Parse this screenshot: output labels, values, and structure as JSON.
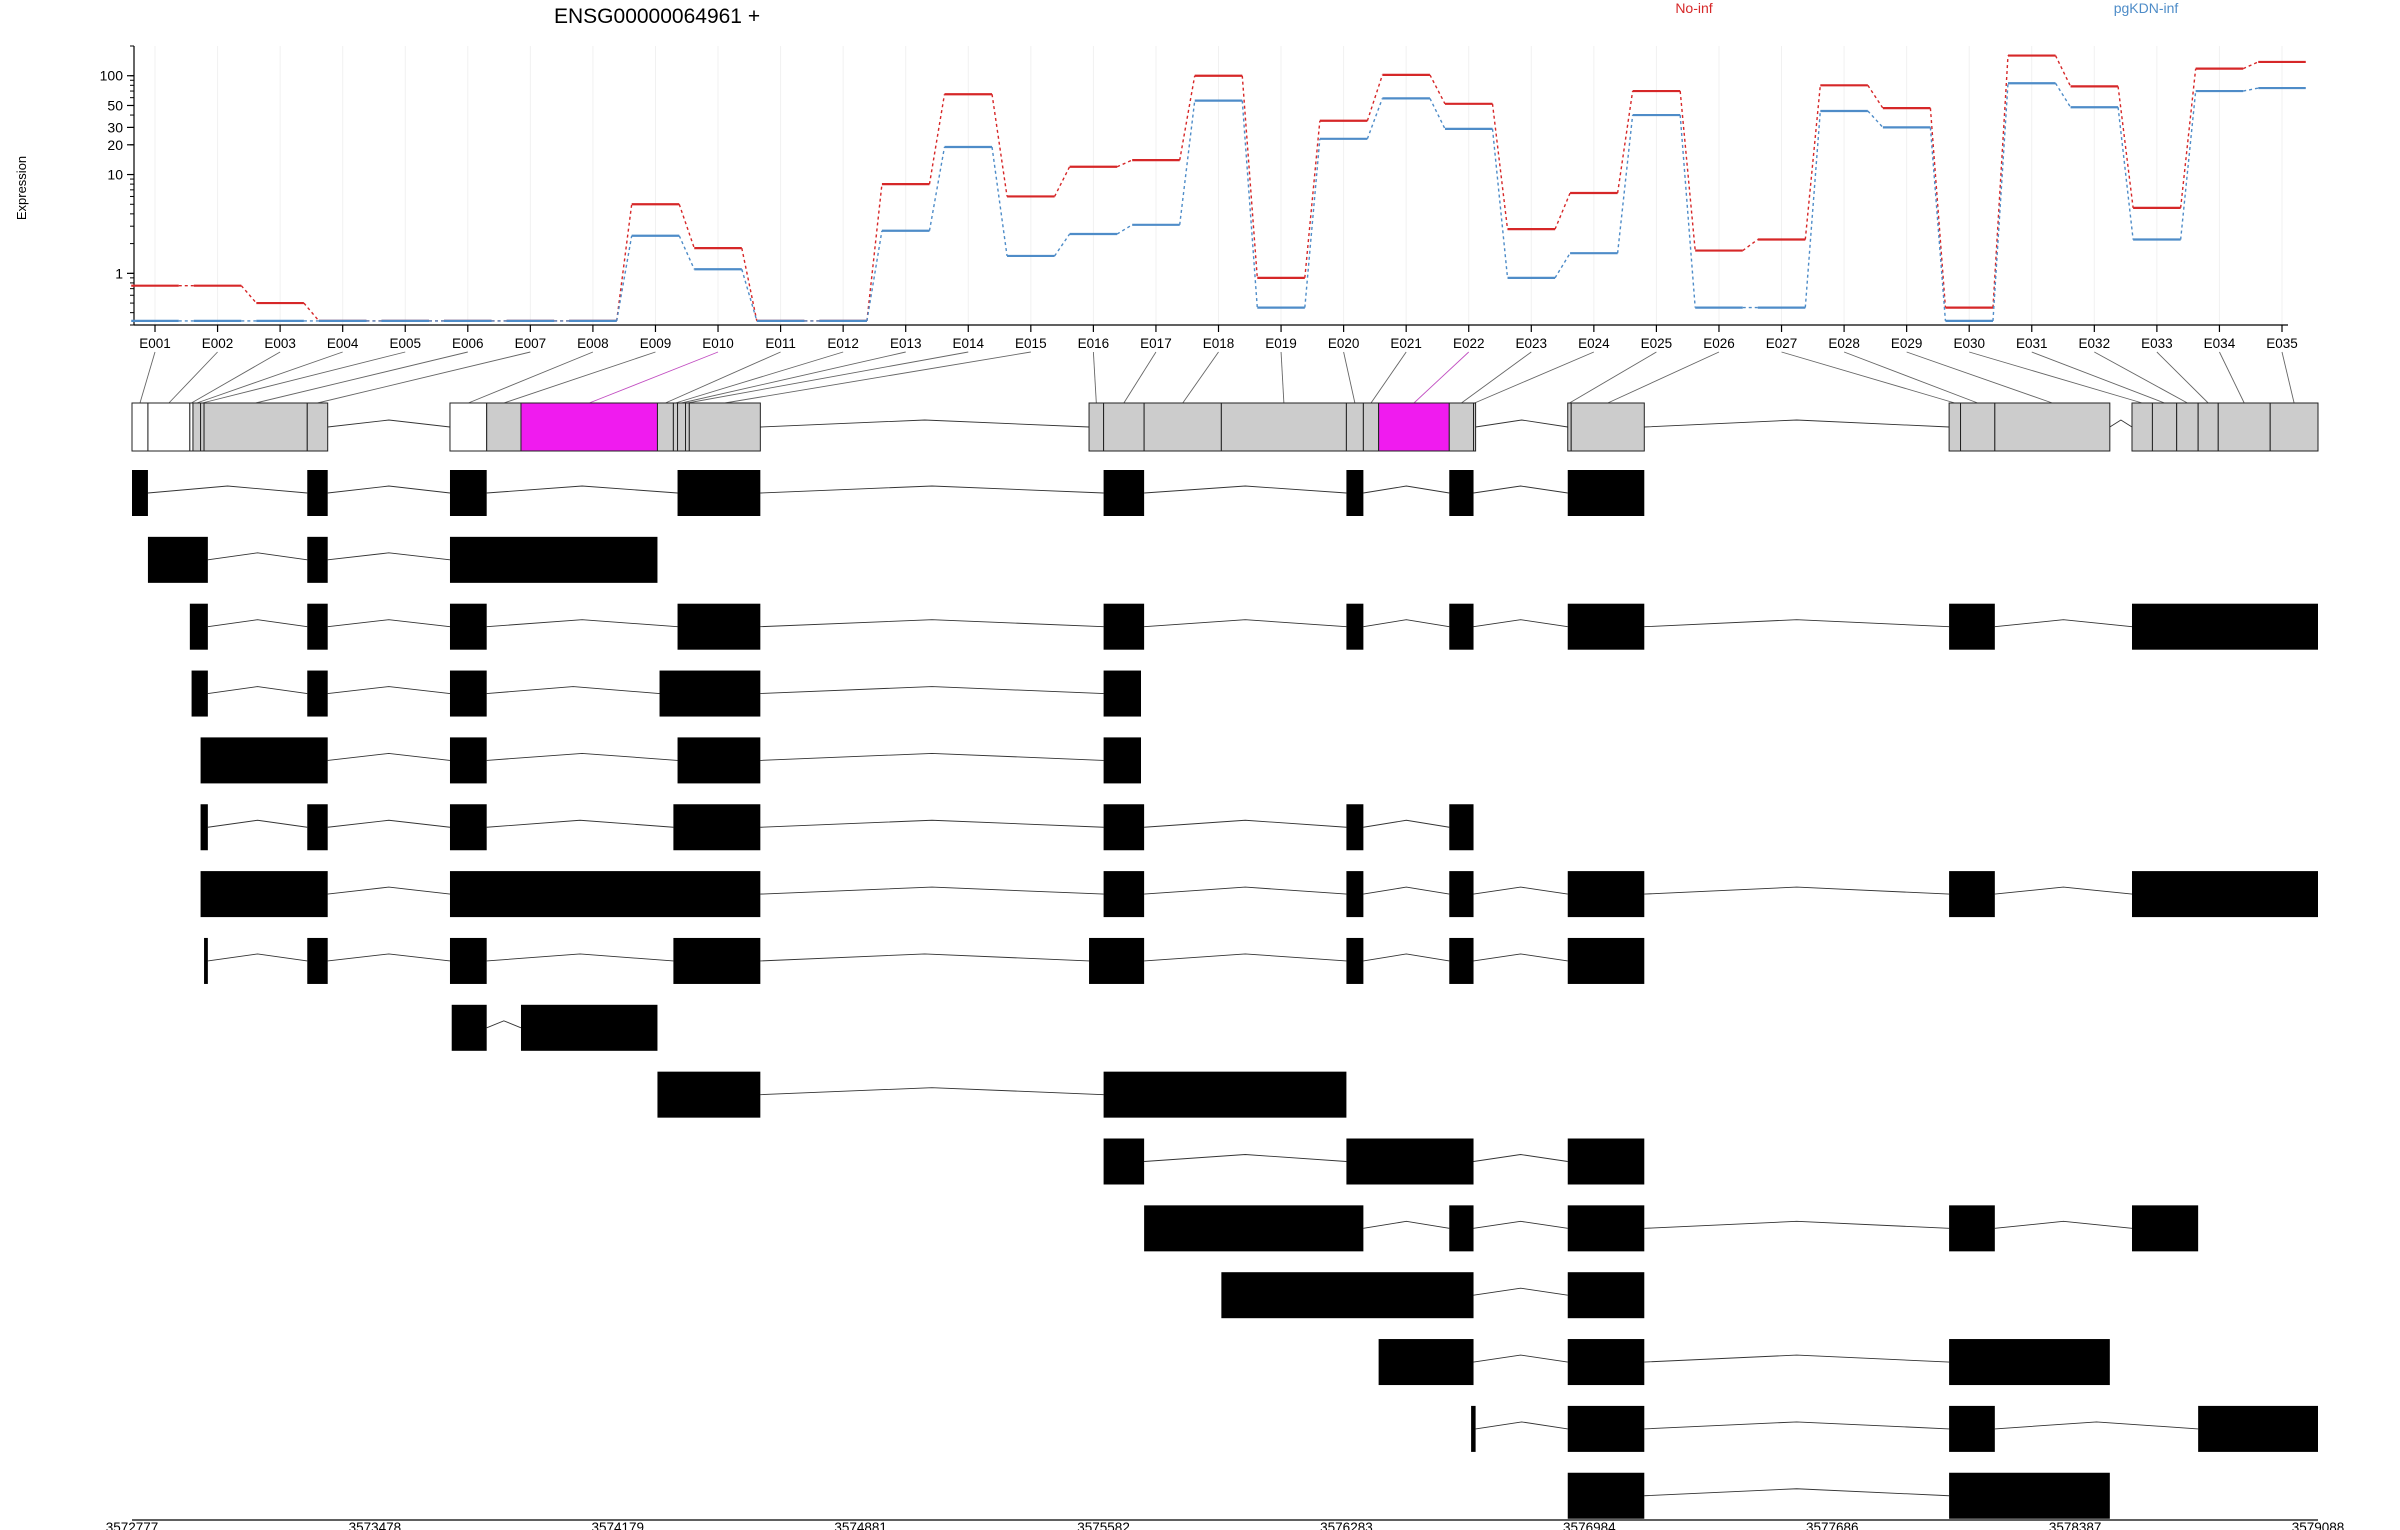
{
  "chart_data": {
    "type": "line",
    "title": "ENSG00000064961 +",
    "ylabel": "Expression",
    "yscale": "log",
    "ylim": [
      0.3,
      200
    ],
    "yticks": [
      1,
      10,
      20,
      30,
      50,
      100
    ],
    "grid": true,
    "legend": "top-right",
    "categories": [
      "E001",
      "E002",
      "E003",
      "E004",
      "E005",
      "E006",
      "E007",
      "E008",
      "E009",
      "E010",
      "E011",
      "E012",
      "E013",
      "E014",
      "E015",
      "E016",
      "E017",
      "E018",
      "E019",
      "E020",
      "E021",
      "E022",
      "E023",
      "E024",
      "E025",
      "E026",
      "E027",
      "E028",
      "E029",
      "E030",
      "E031",
      "E032",
      "E033",
      "E034",
      "E035"
    ],
    "series": [
      {
        "name": "No-inf",
        "color": "#d62728",
        "values": [
          0.75,
          0.75,
          0.5,
          0.33,
          0.33,
          0.33,
          0.33,
          0.33,
          5,
          1.8,
          0.33,
          0.33,
          8,
          65,
          6,
          12,
          14,
          100,
          0.9,
          35,
          102,
          52,
          2.8,
          6.5,
          70,
          1.7,
          2.2,
          80,
          47,
          0.45,
          160,
          78,
          4.6,
          118,
          138
        ]
      },
      {
        "name": "pgKDN-inf",
        "color": "#4e8cc8",
        "values": [
          0.33,
          0.33,
          0.33,
          0.33,
          0.33,
          0.33,
          0.33,
          0.33,
          2.4,
          1.1,
          0.33,
          0.33,
          2.7,
          19,
          1.5,
          2.5,
          3.1,
          56,
          0.45,
          23,
          59,
          29,
          0.9,
          1.6,
          40,
          0.45,
          0.45,
          44,
          30,
          0.33,
          84,
          48,
          2.2,
          70,
          75
        ]
      }
    ],
    "genomic_axis": {
      "min": 3572777,
      "max": 3579088,
      "tick_labels": [
        "3572777",
        "3573478",
        "3574179",
        "3574881",
        "3575582",
        "3576283",
        "3576984",
        "3577686",
        "3578387",
        "3579088"
      ]
    },
    "gene_model": {
      "exons": [
        {
          "id": "E001",
          "start": 3572777,
          "end": 3572823,
          "fill": "#ffffff"
        },
        {
          "id": "E002",
          "start": 3572823,
          "end": 3572944,
          "fill": "#ffffff"
        },
        {
          "id": "E003",
          "start": 3572944,
          "end": 3572953,
          "fill": "#ffffff"
        },
        {
          "id": "E004",
          "start": 3572953,
          "end": 3572975,
          "fill": "#cccccc"
        },
        {
          "id": "E005",
          "start": 3572975,
          "end": 3572985,
          "fill": "#cccccc"
        },
        {
          "id": "E006",
          "start": 3572985,
          "end": 3573283,
          "fill": "#cccccc"
        },
        {
          "id": "E007",
          "start": 3573283,
          "end": 3573342,
          "fill": "#cccccc"
        },
        {
          "id": "E008",
          "start": 3573695,
          "end": 3573801,
          "fill": "#ffffff"
        },
        {
          "id": "E009",
          "start": 3573801,
          "end": 3573900,
          "fill": "#cccccc"
        },
        {
          "id": "E010",
          "start": 3573900,
          "end": 3574294,
          "fill": "#f01bef"
        },
        {
          "id": "E011",
          "start": 3574294,
          "end": 3574340,
          "fill": "#cccccc"
        },
        {
          "id": "E012",
          "start": 3574340,
          "end": 3574352,
          "fill": "#cccccc"
        },
        {
          "id": "E013",
          "start": 3574352,
          "end": 3574375,
          "fill": "#cccccc"
        },
        {
          "id": "E014",
          "start": 3574375,
          "end": 3574386,
          "fill": "#cccccc"
        },
        {
          "id": "E015",
          "start": 3574386,
          "end": 3574591,
          "fill": "#cccccc"
        },
        {
          "id": "E016",
          "start": 3575540,
          "end": 3575582,
          "fill": "#cccccc"
        },
        {
          "id": "E017",
          "start": 3575582,
          "end": 3575699,
          "fill": "#cccccc"
        },
        {
          "id": "E018",
          "start": 3575699,
          "end": 3575922,
          "fill": "#cccccc"
        },
        {
          "id": "E019",
          "start": 3575922,
          "end": 3576283,
          "fill": "#cccccc"
        },
        {
          "id": "E020",
          "start": 3576283,
          "end": 3576332,
          "fill": "#cccccc"
        },
        {
          "id": "E021",
          "start": 3576332,
          "end": 3576376,
          "fill": "#cccccc"
        },
        {
          "id": "E022",
          "start": 3576376,
          "end": 3576580,
          "fill": "#f01bef"
        },
        {
          "id": "E023",
          "start": 3576580,
          "end": 3576650,
          "fill": "#cccccc"
        },
        {
          "id": "E024",
          "start": 3576650,
          "end": 3576656,
          "fill": "#cccccc"
        },
        {
          "id": "E025",
          "start": 3576922,
          "end": 3576932,
          "fill": "#cccccc"
        },
        {
          "id": "E026",
          "start": 3576932,
          "end": 3577143,
          "fill": "#cccccc"
        },
        {
          "id": "E027",
          "start": 3578023,
          "end": 3578056,
          "fill": "#cccccc"
        },
        {
          "id": "E028",
          "start": 3578056,
          "end": 3578155,
          "fill": "#cccccc"
        },
        {
          "id": "E029",
          "start": 3578155,
          "end": 3578487,
          "fill": "#cccccc"
        },
        {
          "id": "E030",
          "start": 3578551,
          "end": 3578610,
          "fill": "#cccccc"
        },
        {
          "id": "E031",
          "start": 3578610,
          "end": 3578680,
          "fill": "#cccccc"
        },
        {
          "id": "E032",
          "start": 3578680,
          "end": 3578742,
          "fill": "#cccccc"
        },
        {
          "id": "E033",
          "start": 3578742,
          "end": 3578800,
          "fill": "#cccccc"
        },
        {
          "id": "E034",
          "start": 3578800,
          "end": 3578950,
          "fill": "#cccccc"
        },
        {
          "id": "E035",
          "start": 3578950,
          "end": 3579088,
          "fill": "#cccccc"
        }
      ]
    },
    "transcripts": [
      [
        [
          3572777,
          3572823
        ],
        [
          3573283,
          3573342
        ],
        [
          3573695,
          3573801
        ],
        [
          3574352,
          3574591
        ],
        [
          3575582,
          3575699
        ],
        [
          3576283,
          3576332
        ],
        [
          3576580,
          3576650
        ],
        [
          3576922,
          3577143
        ]
      ],
      [
        [
          3572823,
          3572996
        ],
        [
          3573283,
          3573342
        ],
        [
          3573695,
          3574294
        ]
      ],
      [
        [
          3572944,
          3572996
        ],
        [
          3573283,
          3573342
        ],
        [
          3573695,
          3573801
        ],
        [
          3574352,
          3574591
        ],
        [
          3575582,
          3575699
        ],
        [
          3576283,
          3576332
        ],
        [
          3576580,
          3576650
        ],
        [
          3576922,
          3577143
        ],
        [
          3578023,
          3578155
        ],
        [
          3578551,
          3579088
        ]
      ],
      [
        [
          3572949,
          3572996
        ],
        [
          3573283,
          3573342
        ],
        [
          3573695,
          3573801
        ],
        [
          3574300,
          3574591
        ],
        [
          3575582,
          3575690
        ]
      ],
      [
        [
          3572975,
          3573342
        ],
        [
          3573695,
          3573801
        ],
        [
          3574352,
          3574591
        ],
        [
          3575582,
          3575690
        ]
      ],
      [
        [
          3572975,
          3572996
        ],
        [
          3573283,
          3573342
        ],
        [
          3573695,
          3573801
        ],
        [
          3574340,
          3574591
        ],
        [
          3575582,
          3575699
        ],
        [
          3576283,
          3576332
        ],
        [
          3576580,
          3576650
        ]
      ],
      [
        [
          3572975,
          3573342
        ],
        [
          3573695,
          3574591
        ],
        [
          3575582,
          3575699
        ],
        [
          3576283,
          3576332
        ],
        [
          3576580,
          3576650
        ],
        [
          3576922,
          3577143
        ],
        [
          3578023,
          3578155
        ],
        [
          3578551,
          3579088
        ]
      ],
      [
        [
          3572985,
          3572996
        ],
        [
          3573283,
          3573342
        ],
        [
          3573695,
          3573801
        ],
        [
          3574340,
          3574591
        ],
        [
          3575540,
          3575699
        ],
        [
          3576283,
          3576332
        ],
        [
          3576580,
          3576650
        ],
        [
          3576922,
          3577143
        ]
      ],
      [
        [
          3573700,
          3573801
        ],
        [
          3573900,
          3574294
        ]
      ],
      [
        [
          3574294,
          3574591
        ],
        [
          3575582,
          3576283
        ]
      ],
      [
        [
          3575582,
          3575699
        ],
        [
          3576283,
          3576650
        ],
        [
          3576922,
          3577143
        ]
      ],
      [
        [
          3575699,
          3576332
        ],
        [
          3576580,
          3576650
        ],
        [
          3576922,
          3577143
        ],
        [
          3578023,
          3578155
        ],
        [
          3578551,
          3578742
        ]
      ],
      [
        [
          3575922,
          3576650
        ],
        [
          3576922,
          3577143
        ]
      ],
      [
        [
          3576376,
          3576650
        ],
        [
          3576922,
          3577143
        ],
        [
          3578023,
          3578487
        ]
      ],
      [
        [
          3576643,
          3576656
        ],
        [
          3576922,
          3577143
        ],
        [
          3578023,
          3578155
        ],
        [
          3578742,
          3579088
        ]
      ],
      [
        [
          3576922,
          3577143
        ],
        [
          3578023,
          3578487
        ]
      ]
    ]
  }
}
